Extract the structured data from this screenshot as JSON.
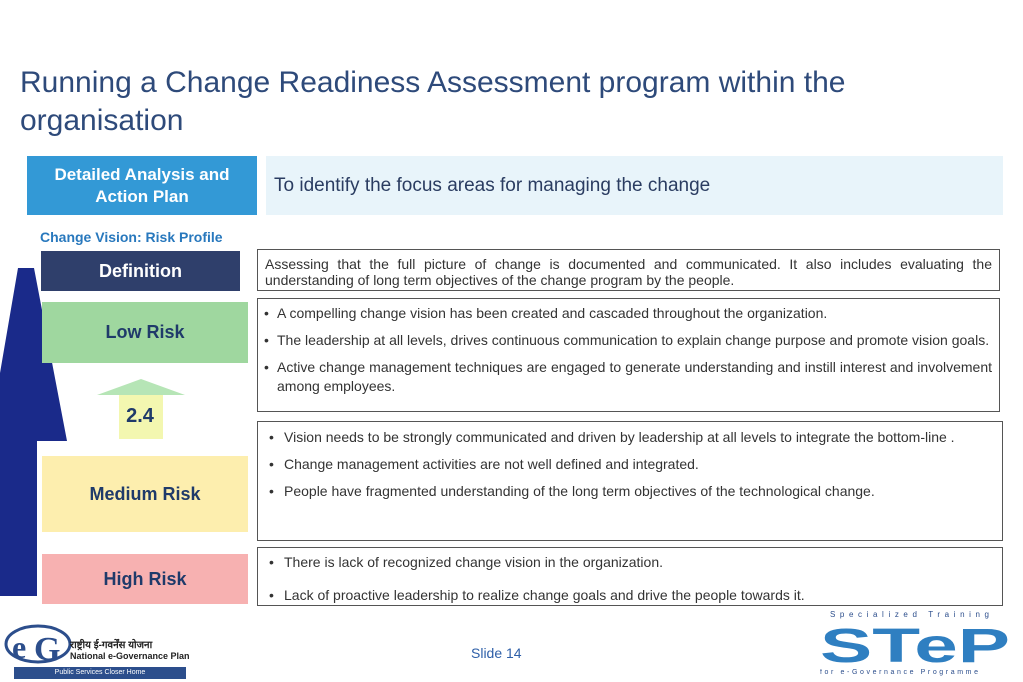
{
  "title": "Running a Change Readiness Assessment program within the organisation",
  "header": {
    "label": "Detailed Analysis and Action Plan",
    "description": "To identify the focus areas for managing the change"
  },
  "subtitle": "Change Vision: Risk Profile",
  "levels": {
    "definition": "Definition",
    "low": "Low Risk",
    "medium": "Medium Risk",
    "high": "High Risk"
  },
  "score": "2.4",
  "definition_text": "Assessing that the full picture of change is  documented and communicated. It also includes evaluating the understanding of long term objectives of the change program by the people.",
  "low_points": [
    "A compelling change vision has been created and cascaded throughout the organization.",
    "The leadership at all levels, drives continuous communication to explain change  purpose and promote vision goals.",
    "Active change management techniques are engaged to generate understanding and instill interest and involvement among employees."
  ],
  "medium_points": [
    "Vision needs to be strongly communicated and driven by leadership at all levels to integrate the bottom-line .",
    "Change management activities are not well defined and integrated.",
    "People have fragmented understanding of the long term objectives of the technological change."
  ],
  "high_points": [
    "There is lack of recognized change vision in the organization.",
    "Lack of proactive leadership to realize change goals and drive the people towards it."
  ],
  "footer": {
    "slide": "Slide 14",
    "left_logo_hindi": "राष्ट्रीय ई-गवर्नेंस योजना",
    "left_logo_name": "National e-Governance Plan",
    "left_logo_tagline": "Public Services Closer Home",
    "right_logo_top": "Specialized Training",
    "right_logo_bottom": "for e-Governance Programme",
    "right_logo_word": "STeP"
  },
  "colors": {
    "title": "#2e4a7a",
    "header_box": "#3399d6",
    "definition": "#2f3f6b",
    "low": "#9fd79f",
    "medium": "#fdeeae",
    "high": "#f7b1b1",
    "big_arrow": "#1a2a8a"
  }
}
